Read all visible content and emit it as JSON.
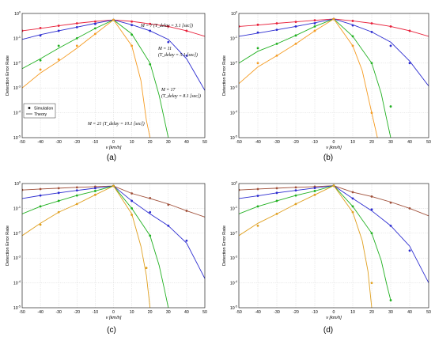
{
  "figure": {
    "x_axis_label": "v [km/h]",
    "y_axis_label": "Detection Error Rate",
    "x_ticks": [
      "-50",
      "-40",
      "-30",
      "-20",
      "-10",
      "0",
      "10",
      "20",
      "30",
      "40",
      "50"
    ],
    "y_ticks": [
      "10^0",
      "10^-1",
      "10^-2",
      "10^-3",
      "10^-4",
      "10^-5"
    ],
    "legend": {
      "simulation": "Simulation",
      "theory": "Theory"
    },
    "annotations": [
      "M = 7 (T_delay = 3.1 [sec])",
      "M = 11 (T_delay = 5.1 [sec])",
      "M = 17 (T_delay = 8.1 [sec])",
      "M = 21 (T_delay = 10.1 [sec])"
    ],
    "series_colors": {
      "a": [
        "#e8203a",
        "#2c2cd0",
        "#20b020",
        "#f59b22"
      ],
      "c": [
        "#a0503a",
        "#2c2cd0",
        "#20b020",
        "#e0a020"
      ]
    }
  },
  "chart_data": [
    {
      "type": "line",
      "panel": "(a)",
      "xlabel": "v [km/h]",
      "ylabel": "Detection Error Rate",
      "xlim": [
        -50,
        50
      ],
      "ylim": [
        1e-05,
        1
      ],
      "yscale": "log",
      "grid": true,
      "legend_position": "bottom-left",
      "series": [
        {
          "name": "M = 7",
          "x": [
            -50,
            -40,
            -30,
            -20,
            -10,
            0,
            10,
            20,
            30,
            40,
            50
          ],
          "theory": [
            0.2,
            0.25,
            0.32,
            0.4,
            0.48,
            0.55,
            0.48,
            0.38,
            0.3,
            0.2,
            0.12
          ],
          "simulation": [
            0.2,
            0.26,
            0.32,
            0.4,
            0.47,
            0.55,
            0.47,
            0.38,
            0.3,
            0.2,
            null
          ]
        },
        {
          "name": "M = 11",
          "x": [
            -50,
            -40,
            -30,
            -20,
            -10,
            0,
            10,
            20,
            30,
            40,
            50
          ],
          "theory": [
            0.09,
            0.14,
            0.2,
            0.28,
            0.4,
            0.55,
            0.35,
            0.2,
            0.09,
            0.015,
            0.0008
          ],
          "simulation": [
            null,
            0.13,
            0.2,
            0.28,
            0.38,
            0.55,
            0.34,
            0.2,
            0.07,
            0.02,
            null
          ]
        },
        {
          "name": "M = 17",
          "x": [
            -50,
            -40,
            -30,
            -20,
            -10,
            0,
            10,
            20,
            25,
            30
          ],
          "theory": [
            0.006,
            0.015,
            0.04,
            0.1,
            0.25,
            0.55,
            0.15,
            0.01,
            0.0005,
            1e-05
          ],
          "simulation": [
            null,
            0.013,
            0.05,
            0.1,
            0.25,
            0.55,
            0.14,
            0.009,
            null,
            null
          ]
        },
        {
          "name": "M = 21",
          "x": [
            -50,
            -40,
            -30,
            -20,
            -10,
            0,
            10,
            15,
            18,
            20
          ],
          "theory": [
            0.001,
            0.004,
            0.012,
            0.04,
            0.15,
            0.55,
            0.05,
            0.002,
            5e-05,
            1e-05
          ],
          "simulation": [
            null,
            0.0055,
            0.014,
            0.05,
            0.15,
            0.55,
            0.05,
            null,
            null,
            null
          ]
        }
      ]
    },
    {
      "type": "line",
      "panel": "(b)",
      "xlabel": "v [km/h]",
      "ylabel": "Detection Error Rate",
      "xlim": [
        -50,
        50
      ],
      "ylim": [
        1e-05,
        1
      ],
      "yscale": "log",
      "grid": true,
      "series": [
        {
          "name": "M = 7",
          "x": [
            -50,
            -40,
            -30,
            -20,
            -10,
            0,
            10,
            20,
            30,
            40,
            50
          ],
          "theory": [
            0.3,
            0.34,
            0.4,
            0.46,
            0.53,
            0.6,
            0.5,
            0.4,
            0.3,
            0.2,
            0.12
          ],
          "simulation": [
            0.3,
            0.35,
            0.4,
            0.46,
            0.53,
            0.6,
            0.5,
            0.4,
            0.3,
            0.2,
            null
          ]
        },
        {
          "name": "M = 11",
          "x": [
            -50,
            -40,
            -30,
            -20,
            -10,
            0,
            10,
            20,
            30,
            40,
            50
          ],
          "theory": [
            0.12,
            0.16,
            0.22,
            0.3,
            0.42,
            0.6,
            0.35,
            0.18,
            0.07,
            0.012,
            0.0012
          ],
          "simulation": [
            null,
            0.17,
            0.22,
            0.3,
            0.4,
            0.6,
            0.33,
            0.18,
            0.05,
            0.01,
            null
          ]
        },
        {
          "name": "M = 17",
          "x": [
            -50,
            -40,
            -30,
            -20,
            -10,
            0,
            10,
            20,
            25,
            28,
            30
          ],
          "theory": [
            0.01,
            0.03,
            0.06,
            0.13,
            0.3,
            0.6,
            0.12,
            0.01,
            0.0006,
            5e-05,
            1e-05
          ],
          "simulation": [
            null,
            0.04,
            0.06,
            0.13,
            0.3,
            0.6,
            0.12,
            0.01,
            null,
            null,
            0.00018
          ]
        },
        {
          "name": "M = 21",
          "x": [
            -50,
            -40,
            -30,
            -20,
            -10,
            0,
            10,
            15,
            20,
            23
          ],
          "theory": [
            0.0015,
            0.007,
            0.02,
            0.06,
            0.2,
            0.6,
            0.05,
            0.005,
            0.0001,
            1e-05
          ],
          "simulation": [
            null,
            0.01,
            0.02,
            0.06,
            0.2,
            0.6,
            0.05,
            null,
            0.0001,
            null
          ]
        }
      ]
    },
    {
      "type": "line",
      "panel": "(c)",
      "xlabel": "v [km/h]",
      "ylabel": "Detection Error Rate",
      "xlim": [
        -50,
        50
      ],
      "ylim": [
        1e-05,
        1
      ],
      "yscale": "log",
      "grid": true,
      "series": [
        {
          "name": "M = 7",
          "x": [
            -50,
            -40,
            -30,
            -20,
            -10,
            0,
            10,
            20,
            30,
            40,
            50
          ],
          "theory": [
            0.55,
            0.6,
            0.65,
            0.7,
            0.75,
            0.8,
            0.4,
            0.25,
            0.15,
            0.08,
            0.045
          ],
          "simulation": [
            0.55,
            0.6,
            0.65,
            0.7,
            0.75,
            0.8,
            0.4,
            0.26,
            0.14,
            0.08,
            null
          ]
        },
        {
          "name": "M = 11",
          "x": [
            -50,
            -40,
            -30,
            -20,
            -10,
            0,
            10,
            20,
            30,
            40,
            50
          ],
          "theory": [
            0.25,
            0.33,
            0.42,
            0.53,
            0.65,
            0.8,
            0.2,
            0.06,
            0.02,
            0.004,
            0.00015
          ],
          "simulation": [
            null,
            0.33,
            0.42,
            0.53,
            0.65,
            0.8,
            0.2,
            0.07,
            0.02,
            0.005,
            null
          ]
        },
        {
          "name": "M = 17",
          "x": [
            -50,
            -40,
            -30,
            -20,
            -10,
            0,
            10,
            20,
            25,
            28,
            30
          ],
          "theory": [
            0.06,
            0.12,
            0.2,
            0.33,
            0.5,
            0.8,
            0.1,
            0.008,
            0.0005,
            5e-05,
            1e-05
          ],
          "simulation": [
            null,
            0.12,
            0.2,
            0.33,
            0.5,
            0.8,
            0.1,
            0.008,
            null,
            null,
            null
          ]
        },
        {
          "name": "M = 21",
          "x": [
            -50,
            -40,
            -30,
            -20,
            -10,
            0,
            10,
            15,
            18,
            20
          ],
          "theory": [
            0.008,
            0.025,
            0.07,
            0.15,
            0.35,
            0.8,
            0.06,
            0.003,
            0.0002,
            1e-05
          ],
          "simulation": [
            null,
            0.022,
            0.07,
            0.15,
            0.35,
            0.8,
            0.055,
            null,
            0.0004,
            null
          ]
        }
      ]
    },
    {
      "type": "line",
      "panel": "(d)",
      "xlabel": "v [km/h]",
      "ylabel": "Detection Error Rate",
      "xlim": [
        -50,
        50
      ],
      "ylim": [
        1e-05,
        1
      ],
      "yscale": "log",
      "grid": true,
      "series": [
        {
          "name": "M = 7",
          "x": [
            -50,
            -40,
            -30,
            -20,
            -10,
            0,
            10,
            20,
            30,
            40,
            50
          ],
          "theory": [
            0.55,
            0.6,
            0.65,
            0.7,
            0.75,
            0.82,
            0.45,
            0.3,
            0.18,
            0.1,
            0.05
          ],
          "simulation": [
            0.55,
            0.6,
            0.65,
            0.7,
            0.75,
            0.82,
            0.45,
            0.3,
            0.17,
            0.1,
            null
          ]
        },
        {
          "name": "M = 11",
          "x": [
            -50,
            -40,
            -30,
            -20,
            -10,
            0,
            10,
            20,
            30,
            40,
            50
          ],
          "theory": [
            0.25,
            0.32,
            0.42,
            0.53,
            0.66,
            0.82,
            0.25,
            0.08,
            0.02,
            0.003,
            0.0001
          ],
          "simulation": [
            null,
            0.32,
            0.42,
            0.53,
            0.66,
            0.82,
            0.25,
            0.09,
            0.02,
            0.002,
            null
          ]
        },
        {
          "name": "M = 17",
          "x": [
            -50,
            -40,
            -30,
            -20,
            -10,
            0,
            10,
            20,
            25,
            28,
            30
          ],
          "theory": [
            0.06,
            0.12,
            0.2,
            0.33,
            0.5,
            0.82,
            0.12,
            0.01,
            0.0008,
            8e-05,
            2e-05
          ],
          "simulation": [
            null,
            0.12,
            0.2,
            0.33,
            0.5,
            0.82,
            0.12,
            0.01,
            null,
            null,
            2e-05
          ]
        },
        {
          "name": "M = 21",
          "x": [
            -50,
            -40,
            -30,
            -20,
            -10,
            0,
            10,
            15,
            18,
            20
          ],
          "theory": [
            0.008,
            0.025,
            0.06,
            0.15,
            0.35,
            0.82,
            0.07,
            0.005,
            0.0003,
            1e-05
          ],
          "simulation": [
            null,
            0.02,
            0.06,
            0.15,
            0.35,
            0.82,
            0.07,
            null,
            null,
            0.0001
          ]
        }
      ]
    }
  ]
}
